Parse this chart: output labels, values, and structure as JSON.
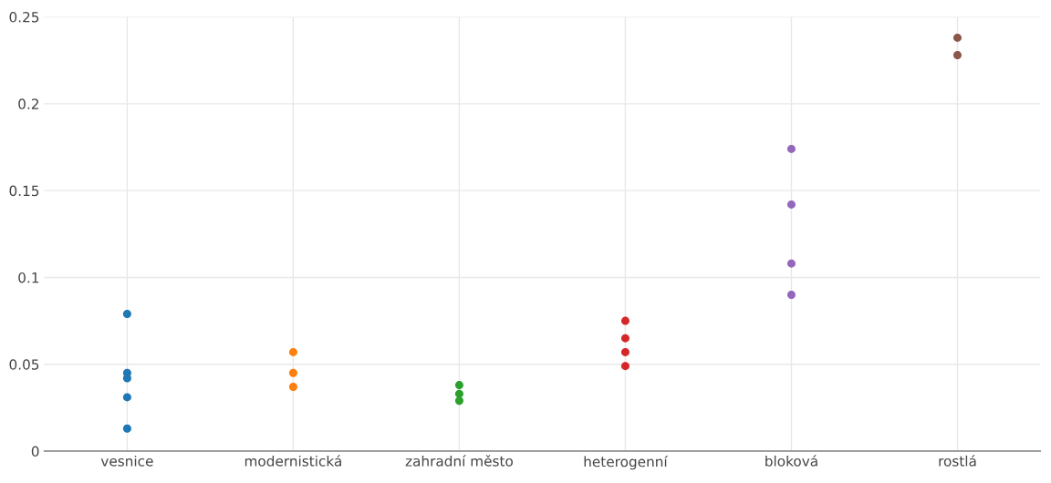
{
  "chart_data": {
    "type": "scatter",
    "categories": [
      "vesnice",
      "modernistická",
      "zahradní město",
      "heterogenní",
      "bloková",
      "rostlá"
    ],
    "series": [
      {
        "color": "#1f77b4",
        "x": [
          "vesnice",
          "vesnice",
          "vesnice",
          "vesnice",
          "vesnice"
        ],
        "values": [
          0.079,
          0.045,
          0.042,
          0.031,
          0.013
        ]
      },
      {
        "color": "#ff7f0e",
        "x": [
          "modernistická",
          "modernistická",
          "modernistická"
        ],
        "values": [
          0.057,
          0.045,
          0.037
        ]
      },
      {
        "color": "#2ca02c",
        "x": [
          "zahradní město",
          "zahradní město",
          "zahradní město",
          "zahradní město",
          "zahradní město"
        ],
        "values": [
          0.038,
          0.033,
          null,
          null,
          0.029
        ]
      },
      {
        "color": "#d62728",
        "x": [
          "heterogenní",
          "heterogenní",
          "heterogenní",
          "heterogenní"
        ],
        "values": [
          0.075,
          0.065,
          0.057,
          0.049
        ]
      },
      {
        "color": "#9467bd",
        "x": [
          "bloková",
          "bloková",
          "bloková",
          "bloková"
        ],
        "values": [
          0.174,
          0.142,
          0.108,
          0.09
        ]
      },
      {
        "color": "#8c564b",
        "x": [
          "rostlá",
          "rostlá"
        ],
        "values": [
          0.238,
          0.228
        ]
      }
    ],
    "ylim": [
      0,
      0.25
    ],
    "yticks": [
      {
        "value": 0,
        "label": "0"
      },
      0.05,
      {
        "value": 0.1,
        "label": "0.1"
      },
      0.15,
      {
        "value": 0.2,
        "label": "0.2"
      },
      0.25
    ],
    "grid": true,
    "marker": "circle"
  }
}
